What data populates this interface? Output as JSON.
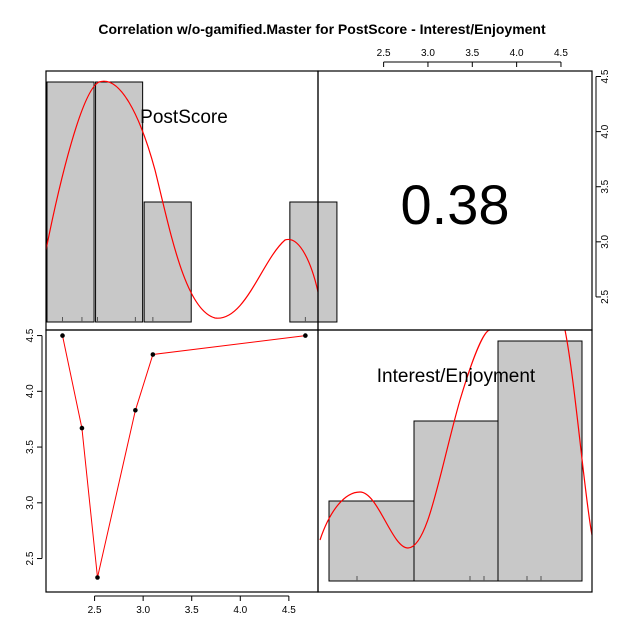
{
  "chart_data": {
    "type": "scatter-matrix",
    "title": "Correlation w/o-gamified.Master for PostScore - Interest/Enjoyment",
    "variables": [
      "PostScore",
      "Interest/Enjoyment"
    ],
    "correlation": "0.38",
    "x_axis": {
      "range": [
        2.0,
        4.8
      ],
      "ticks": [
        2.5,
        3.0,
        3.5,
        4.0,
        4.5
      ],
      "tick_labels": [
        "2.5",
        "3.0",
        "3.5",
        "4.0",
        "4.5"
      ]
    },
    "y_axis": {
      "range": [
        2.2,
        4.55
      ],
      "ticks": [
        2.5,
        3.0,
        3.5,
        4.0,
        4.5
      ],
      "tick_labels": [
        "2.5",
        "3.0",
        "3.5",
        "4.0",
        "4.5"
      ]
    },
    "histogram_PostScore": {
      "bins": [
        [
          2.0,
          2.5
        ],
        [
          2.5,
          3.0
        ],
        [
          3.0,
          3.5
        ],
        [
          4.5,
          5.0
        ]
      ],
      "counts": [
        2,
        2,
        1,
        1
      ],
      "rug": [
        2.17,
        2.37,
        2.53,
        2.92,
        3.1,
        4.67
      ]
    },
    "histogram_Interest_Enjoyment": {
      "bins": [
        [
          2.0,
          2.5
        ],
        [
          2.5,
          3.0
        ],
        [
          3.0,
          3.5
        ],
        [
          3.5,
          4.0
        ],
        [
          4.0,
          4.5
        ]
      ],
      "counts": [
        1,
        0,
        0,
        2,
        3
      ],
      "rug": [
        2.33,
        3.67,
        3.83,
        4.33,
        4.5
      ]
    },
    "scatter_points": [
      {
        "x": 2.17,
        "y": 4.5
      },
      {
        "x": 2.37,
        "y": 3.67
      },
      {
        "x": 2.53,
        "y": 2.33
      },
      {
        "x": 2.92,
        "y": 3.83
      },
      {
        "x": 3.1,
        "y": 4.33
      },
      {
        "x": 4.67,
        "y": 4.5
      }
    ],
    "colors": {
      "bar_fill": "#c8c8c8",
      "curve": "#ff0000",
      "point": "#000000",
      "frame": "#000000"
    }
  }
}
